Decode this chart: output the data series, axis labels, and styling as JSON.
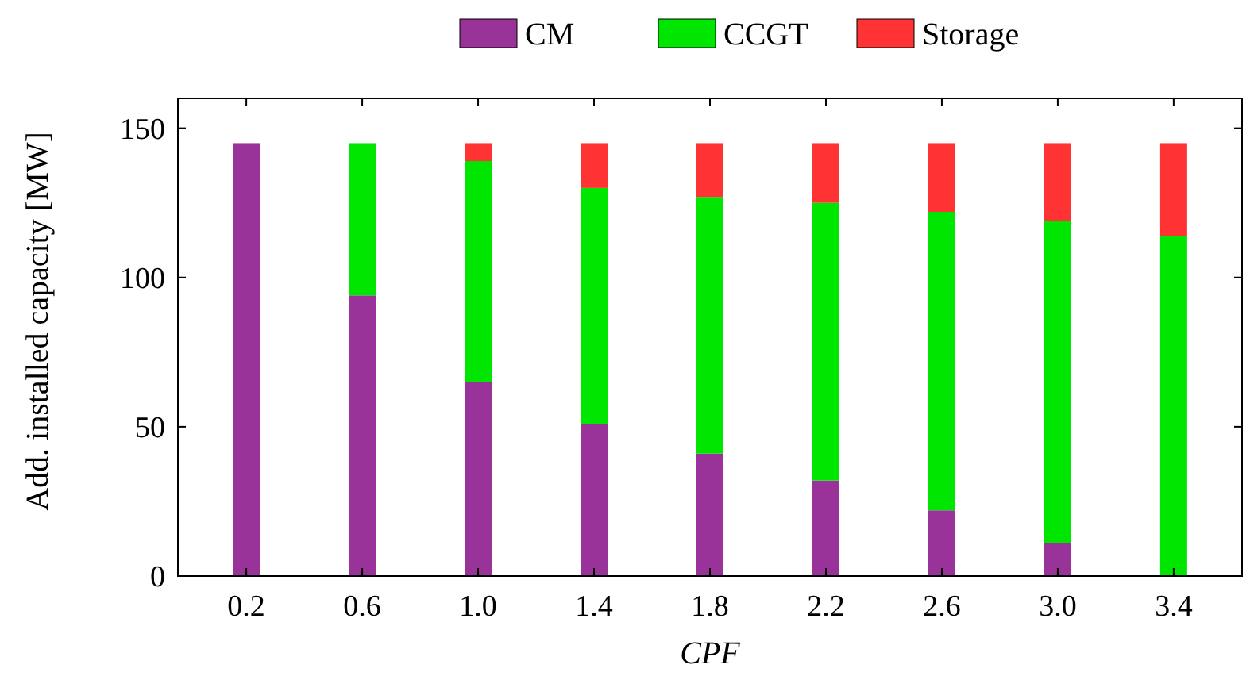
{
  "chart_data": {
    "type": "bar",
    "stacked": true,
    "xlabel": "CPF",
    "ylabel": "Add. installed capacity [MW]",
    "categories": [
      "0.2",
      "0.6",
      "1.0",
      "1.4",
      "1.8",
      "2.2",
      "2.6",
      "3.0",
      "3.4"
    ],
    "series": [
      {
        "name": "CM",
        "color": "#993399",
        "values": [
          145,
          94,
          65,
          51,
          41,
          32,
          22,
          11,
          0
        ]
      },
      {
        "name": "CCGT",
        "color": "#00e600",
        "values": [
          0,
          51,
          74,
          79,
          86,
          93,
          100,
          108,
          114
        ]
      },
      {
        "name": "Storage",
        "color": "#ff3333",
        "values": [
          0,
          0,
          6,
          15,
          18,
          20,
          23,
          26,
          31
        ]
      }
    ],
    "ylim": [
      0,
      160
    ],
    "yticks": [
      0,
      50,
      100,
      150
    ],
    "grid": false,
    "legend": "top"
  }
}
